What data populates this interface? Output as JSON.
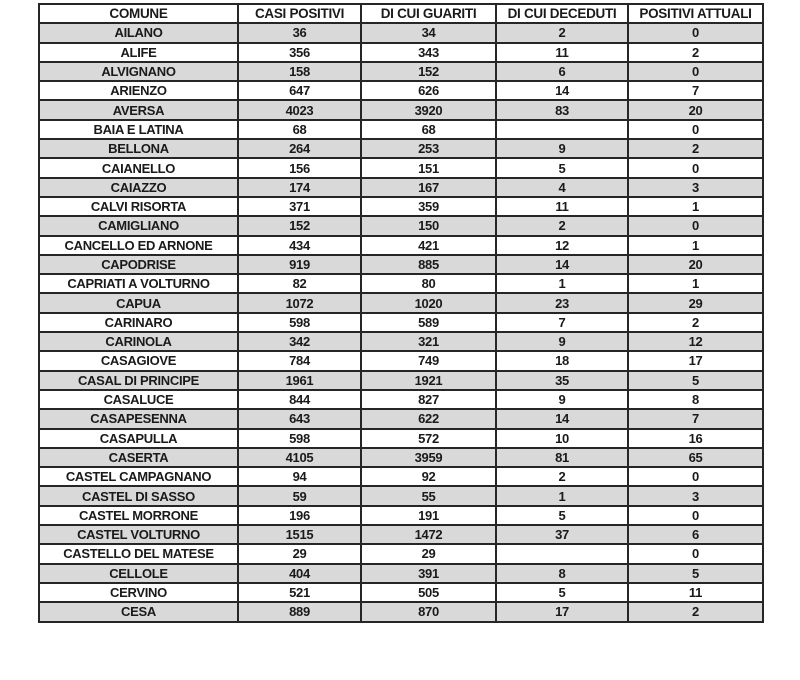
{
  "table": {
    "columns": [
      "COMUNE",
      "CASI POSITIVI",
      "DI CUI GUARITI",
      "DI CUI DECEDUTI",
      "POSITIVI ATTUALI"
    ],
    "rows": [
      [
        "AILANO",
        "36",
        "34",
        "2",
        "0"
      ],
      [
        "ALIFE",
        "356",
        "343",
        "11",
        "2"
      ],
      [
        "ALVIGNANO",
        "158",
        "152",
        "6",
        "0"
      ],
      [
        "ARIENZO",
        "647",
        "626",
        "14",
        "7"
      ],
      [
        "AVERSA",
        "4023",
        "3920",
        "83",
        "20"
      ],
      [
        "BAIA E LATINA",
        "68",
        "68",
        "",
        "0"
      ],
      [
        "BELLONA",
        "264",
        "253",
        "9",
        "2"
      ],
      [
        "CAIANELLO",
        "156",
        "151",
        "5",
        "0"
      ],
      [
        "CAIAZZO",
        "174",
        "167",
        "4",
        "3"
      ],
      [
        "CALVI RISORTA",
        "371",
        "359",
        "11",
        "1"
      ],
      [
        "CAMIGLIANO",
        "152",
        "150",
        "2",
        "0"
      ],
      [
        "CANCELLO ED ARNONE",
        "434",
        "421",
        "12",
        "1"
      ],
      [
        "CAPODRISE",
        "919",
        "885",
        "14",
        "20"
      ],
      [
        "CAPRIATI A VOLTURNO",
        "82",
        "80",
        "1",
        "1"
      ],
      [
        "CAPUA",
        "1072",
        "1020",
        "23",
        "29"
      ],
      [
        "CARINARO",
        "598",
        "589",
        "7",
        "2"
      ],
      [
        "CARINOLA",
        "342",
        "321",
        "9",
        "12"
      ],
      [
        "CASAGIOVE",
        "784",
        "749",
        "18",
        "17"
      ],
      [
        "CASAL DI PRINCIPE",
        "1961",
        "1921",
        "35",
        "5"
      ],
      [
        "CASALUCE",
        "844",
        "827",
        "9",
        "8"
      ],
      [
        "CASAPESENNA",
        "643",
        "622",
        "14",
        "7"
      ],
      [
        "CASAPULLA",
        "598",
        "572",
        "10",
        "16"
      ],
      [
        "CASERTA",
        "4105",
        "3959",
        "81",
        "65"
      ],
      [
        "CASTEL CAMPAGNANO",
        "94",
        "92",
        "2",
        "0"
      ],
      [
        "CASTEL DI SASSO",
        "59",
        "55",
        "1",
        "3"
      ],
      [
        "CASTEL MORRONE",
        "196",
        "191",
        "5",
        "0"
      ],
      [
        "CASTEL VOLTURNO",
        "1515",
        "1472",
        "37",
        "6"
      ],
      [
        "CASTELLO DEL MATESE",
        "29",
        "29",
        "",
        "0"
      ],
      [
        "CELLOLE",
        "404",
        "391",
        "8",
        "5"
      ],
      [
        "CERVINO",
        "521",
        "505",
        "5",
        "11"
      ],
      [
        "CESA",
        "889",
        "870",
        "17",
        "2"
      ]
    ]
  },
  "colors": {
    "row_alt_background": "#d9d9d9",
    "row_base_background": "#ffffff",
    "border": "#262626",
    "text": "#1a1a1a"
  }
}
